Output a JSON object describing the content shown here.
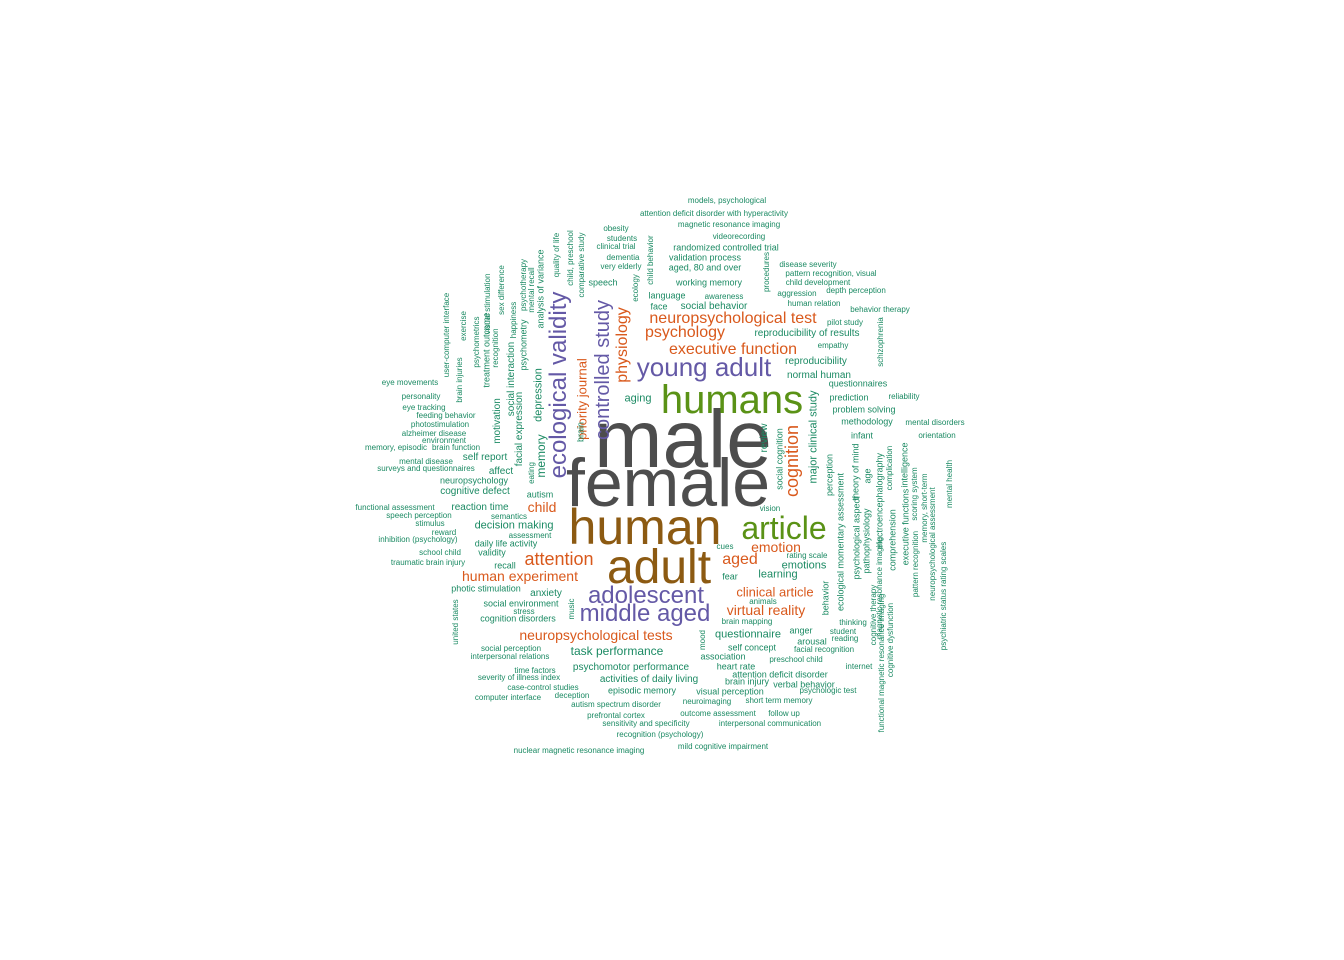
{
  "palette": {
    "grey": "#4d4d4d",
    "brown": "#8c5a12",
    "green": "#5a9216",
    "purple": "#6459a6",
    "orange": "#d9591c",
    "teal": "#1b8a63"
  },
  "words": [
    {
      "text": "male",
      "color": "grey"
    },
    {
      "text": "female",
      "color": "grey"
    },
    {
      "text": "human",
      "color": "brown"
    },
    {
      "text": "adult",
      "color": "brown"
    },
    {
      "text": "humans",
      "color": "green"
    },
    {
      "text": "article",
      "color": "green"
    },
    {
      "text": "young adult",
      "color": "purple"
    },
    {
      "text": "adolescent",
      "color": "purple"
    },
    {
      "text": "middle aged",
      "color": "purple"
    },
    {
      "text": "ecological validity",
      "color": "purple"
    },
    {
      "text": "controlled study",
      "color": "purple"
    },
    {
      "text": "neuropsychological test",
      "color": "orange"
    },
    {
      "text": "executive function",
      "color": "orange"
    },
    {
      "text": "psychology",
      "color": "orange"
    },
    {
      "text": "physiology",
      "color": "orange"
    },
    {
      "text": "priority journal",
      "color": "orange"
    },
    {
      "text": "cognition",
      "color": "orange"
    },
    {
      "text": "attention",
      "color": "orange"
    },
    {
      "text": "human experiment",
      "color": "orange"
    },
    {
      "text": "aged",
      "color": "orange"
    },
    {
      "text": "emotion",
      "color": "orange"
    },
    {
      "text": "clinical article",
      "color": "orange"
    },
    {
      "text": "virtual reality",
      "color": "orange"
    },
    {
      "text": "neuropsychological tests",
      "color": "orange"
    },
    {
      "text": "child",
      "color": "orange"
    },
    {
      "text": "models, psychological",
      "color": "teal"
    },
    {
      "text": "attention deficit disorder with hyperactivity",
      "color": "teal"
    },
    {
      "text": "magnetic resonance imaging",
      "color": "teal"
    },
    {
      "text": "videorecording",
      "color": "teal"
    },
    {
      "text": "obesity",
      "color": "teal"
    },
    {
      "text": "students",
      "color": "teal"
    },
    {
      "text": "clinical trial",
      "color": "teal"
    },
    {
      "text": "randomized controlled trial",
      "color": "teal"
    },
    {
      "text": "dementia",
      "color": "teal"
    },
    {
      "text": "validation process",
      "color": "teal"
    },
    {
      "text": "very elderly",
      "color": "teal"
    },
    {
      "text": "aged, 80 and over",
      "color": "teal"
    },
    {
      "text": "disease severity",
      "color": "teal"
    },
    {
      "text": "pattern recognition, visual",
      "color": "teal"
    },
    {
      "text": "child development",
      "color": "teal"
    },
    {
      "text": "speech",
      "color": "teal"
    },
    {
      "text": "working memory",
      "color": "teal"
    },
    {
      "text": "aggression",
      "color": "teal"
    },
    {
      "text": "depth perception",
      "color": "teal"
    },
    {
      "text": "language",
      "color": "teal"
    },
    {
      "text": "awareness",
      "color": "teal"
    },
    {
      "text": "human relation",
      "color": "teal"
    },
    {
      "text": "face",
      "color": "teal"
    },
    {
      "text": "social behavior",
      "color": "teal"
    },
    {
      "text": "behavior therapy",
      "color": "teal"
    },
    {
      "text": "pilot study",
      "color": "teal"
    },
    {
      "text": "reproducibility of results",
      "color": "teal"
    },
    {
      "text": "empathy",
      "color": "teal"
    },
    {
      "text": "reproducibility",
      "color": "teal"
    },
    {
      "text": "normal human",
      "color": "teal"
    },
    {
      "text": "questionnaires",
      "color": "teal"
    },
    {
      "text": "prediction",
      "color": "teal"
    },
    {
      "text": "reliability",
      "color": "teal"
    },
    {
      "text": "problem solving",
      "color": "teal"
    },
    {
      "text": "methodology",
      "color": "teal"
    },
    {
      "text": "mental disorders",
      "color": "teal"
    },
    {
      "text": "infant",
      "color": "teal"
    },
    {
      "text": "orientation",
      "color": "teal"
    },
    {
      "text": "eye movements",
      "color": "teal"
    },
    {
      "text": "personality",
      "color": "teal"
    },
    {
      "text": "eye tracking",
      "color": "teal"
    },
    {
      "text": "feeding behavior",
      "color": "teal"
    },
    {
      "text": "photostimulation",
      "color": "teal"
    },
    {
      "text": "alzheimer disease",
      "color": "teal"
    },
    {
      "text": "environment",
      "color": "teal"
    },
    {
      "text": "memory, episodic",
      "color": "teal"
    },
    {
      "text": "brain function",
      "color": "teal"
    },
    {
      "text": "mental disease",
      "color": "teal"
    },
    {
      "text": "self report",
      "color": "teal"
    },
    {
      "text": "surveys and questionnaires",
      "color": "teal"
    },
    {
      "text": "affect",
      "color": "teal"
    },
    {
      "text": "neuropsychology",
      "color": "teal"
    },
    {
      "text": "cognitive defect",
      "color": "teal"
    },
    {
      "text": "autism",
      "color": "teal"
    },
    {
      "text": "functional assessment",
      "color": "teal"
    },
    {
      "text": "reaction time",
      "color": "teal"
    },
    {
      "text": "speech perception",
      "color": "teal"
    },
    {
      "text": "semantics",
      "color": "teal"
    },
    {
      "text": "stimulus",
      "color": "teal"
    },
    {
      "text": "decision making",
      "color": "teal"
    },
    {
      "text": "reward",
      "color": "teal"
    },
    {
      "text": "assessment",
      "color": "teal"
    },
    {
      "text": "inhibition (psychology)",
      "color": "teal"
    },
    {
      "text": "daily life activity",
      "color": "teal"
    },
    {
      "text": "school child",
      "color": "teal"
    },
    {
      "text": "validity",
      "color": "teal"
    },
    {
      "text": "traumatic brain injury",
      "color": "teal"
    },
    {
      "text": "recall",
      "color": "teal"
    },
    {
      "text": "photic stimulation",
      "color": "teal"
    },
    {
      "text": "anxiety",
      "color": "teal"
    },
    {
      "text": "social environment",
      "color": "teal"
    },
    {
      "text": "stress",
      "color": "teal"
    },
    {
      "text": "cognition disorders",
      "color": "teal"
    },
    {
      "text": "social perception",
      "color": "teal"
    },
    {
      "text": "interpersonal relations",
      "color": "teal"
    },
    {
      "text": "task performance",
      "color": "teal"
    },
    {
      "text": "psychomotor performance",
      "color": "teal"
    },
    {
      "text": "time factors",
      "color": "teal"
    },
    {
      "text": "severity of illness index",
      "color": "teal"
    },
    {
      "text": "activities of daily living",
      "color": "teal"
    },
    {
      "text": "case-control studies",
      "color": "teal"
    },
    {
      "text": "episodic memory",
      "color": "teal"
    },
    {
      "text": "deception",
      "color": "teal"
    },
    {
      "text": "computer interface",
      "color": "teal"
    },
    {
      "text": "autism spectrum disorder",
      "color": "teal"
    },
    {
      "text": "neuroimaging",
      "color": "teal"
    },
    {
      "text": "prefrontal cortex",
      "color": "teal"
    },
    {
      "text": "sensitivity and specificity",
      "color": "teal"
    },
    {
      "text": "outcome assessment",
      "color": "teal"
    },
    {
      "text": "follow up",
      "color": "teal"
    },
    {
      "text": "interpersonal communication",
      "color": "teal"
    },
    {
      "text": "recognition (psychology)",
      "color": "teal"
    },
    {
      "text": "nuclear magnetic resonance imaging",
      "color": "teal"
    },
    {
      "text": "mild cognitive impairment",
      "color": "teal"
    },
    {
      "text": "cues",
      "color": "teal"
    },
    {
      "text": "fear",
      "color": "teal"
    },
    {
      "text": "learning",
      "color": "teal"
    },
    {
      "text": "emotions",
      "color": "teal"
    },
    {
      "text": "rating scale",
      "color": "teal"
    },
    {
      "text": "vision",
      "color": "teal"
    },
    {
      "text": "animals",
      "color": "teal"
    },
    {
      "text": "brain mapping",
      "color": "teal"
    },
    {
      "text": "questionnaire",
      "color": "teal"
    },
    {
      "text": "anger",
      "color": "teal"
    },
    {
      "text": "student",
      "color": "teal"
    },
    {
      "text": "thinking",
      "color": "teal"
    },
    {
      "text": "arousal",
      "color": "teal"
    },
    {
      "text": "reading",
      "color": "teal"
    },
    {
      "text": "self concept",
      "color": "teal"
    },
    {
      "text": "facial recognition",
      "color": "teal"
    },
    {
      "text": "association",
      "color": "teal"
    },
    {
      "text": "preschool child",
      "color": "teal"
    },
    {
      "text": "heart rate",
      "color": "teal"
    },
    {
      "text": "internet",
      "color": "teal"
    },
    {
      "text": "attention deficit disorder",
      "color": "teal"
    },
    {
      "text": "brain injury",
      "color": "teal"
    },
    {
      "text": "verbal behavior",
      "color": "teal"
    },
    {
      "text": "visual perception",
      "color": "teal"
    },
    {
      "text": "psychologic test",
      "color": "teal"
    },
    {
      "text": "short term memory",
      "color": "teal"
    },
    {
      "text": "aging",
      "color": "teal"
    },
    {
      "text": "user-computer interface",
      "color": "teal"
    },
    {
      "text": "exercise",
      "color": "teal"
    },
    {
      "text": "brain injuries",
      "color": "teal"
    },
    {
      "text": "psychometrics",
      "color": "teal"
    },
    {
      "text": "treatment outcome",
      "color": "teal"
    },
    {
      "text": "visual stimulation",
      "color": "teal"
    },
    {
      "text": "sex difference",
      "color": "teal"
    },
    {
      "text": "recognition",
      "color": "teal"
    },
    {
      "text": "motivation",
      "color": "teal"
    },
    {
      "text": "happiness",
      "color": "teal"
    },
    {
      "text": "psychometry",
      "color": "teal"
    },
    {
      "text": "psychotherapy",
      "color": "teal"
    },
    {
      "text": "social interaction",
      "color": "teal"
    },
    {
      "text": "facial expression",
      "color": "teal"
    },
    {
      "text": "mental recall",
      "color": "teal"
    },
    {
      "text": "analysis of variance",
      "color": "teal"
    },
    {
      "text": "eating",
      "color": "teal"
    },
    {
      "text": "quality of life",
      "color": "teal"
    },
    {
      "text": "memory",
      "color": "teal"
    },
    {
      "text": "depression",
      "color": "teal"
    },
    {
      "text": "child, preschool",
      "color": "teal"
    },
    {
      "text": "comparative study",
      "color": "teal"
    },
    {
      "text": "brain",
      "color": "teal"
    },
    {
      "text": "united states",
      "color": "teal"
    },
    {
      "text": "music",
      "color": "teal"
    },
    {
      "text": "mood",
      "color": "teal"
    },
    {
      "text": "ecology",
      "color": "teal"
    },
    {
      "text": "child behavior",
      "color": "teal"
    },
    {
      "text": "procedures",
      "color": "teal"
    },
    {
      "text": "review",
      "color": "teal"
    },
    {
      "text": "social cognition",
      "color": "teal"
    },
    {
      "text": "major clinical study",
      "color": "teal"
    },
    {
      "text": "perception",
      "color": "teal"
    },
    {
      "text": "ecological momentary assessment",
      "color": "teal"
    },
    {
      "text": "theory of mind",
      "color": "teal"
    },
    {
      "text": "psychological aspect",
      "color": "teal"
    },
    {
      "text": "pathophysiology",
      "color": "teal"
    },
    {
      "text": "electroencephalography",
      "color": "teal"
    },
    {
      "text": "age",
      "color": "teal"
    },
    {
      "text": "schizophrenia",
      "color": "teal"
    },
    {
      "text": "complication",
      "color": "teal"
    },
    {
      "text": "comprehension",
      "color": "teal"
    },
    {
      "text": "intelligence",
      "color": "teal"
    },
    {
      "text": "executive functions",
      "color": "teal"
    },
    {
      "text": "scoring system",
      "color": "teal"
    },
    {
      "text": "pattern recognition",
      "color": "teal"
    },
    {
      "text": "memory, short-term",
      "color": "teal"
    },
    {
      "text": "neuropsychological assessment",
      "color": "teal"
    },
    {
      "text": "mental health",
      "color": "teal"
    },
    {
      "text": "psychiatric status rating scales",
      "color": "teal"
    },
    {
      "text": "behavior",
      "color": "teal"
    },
    {
      "text": "cognitive therapy",
      "color": "teal"
    },
    {
      "text": "magnetic resonance imaging",
      "color": "teal"
    },
    {
      "text": "functional magnetic resonance imaging",
      "color": "teal"
    },
    {
      "text": "cognitive dysfunction",
      "color": "teal"
    }
  ]
}
